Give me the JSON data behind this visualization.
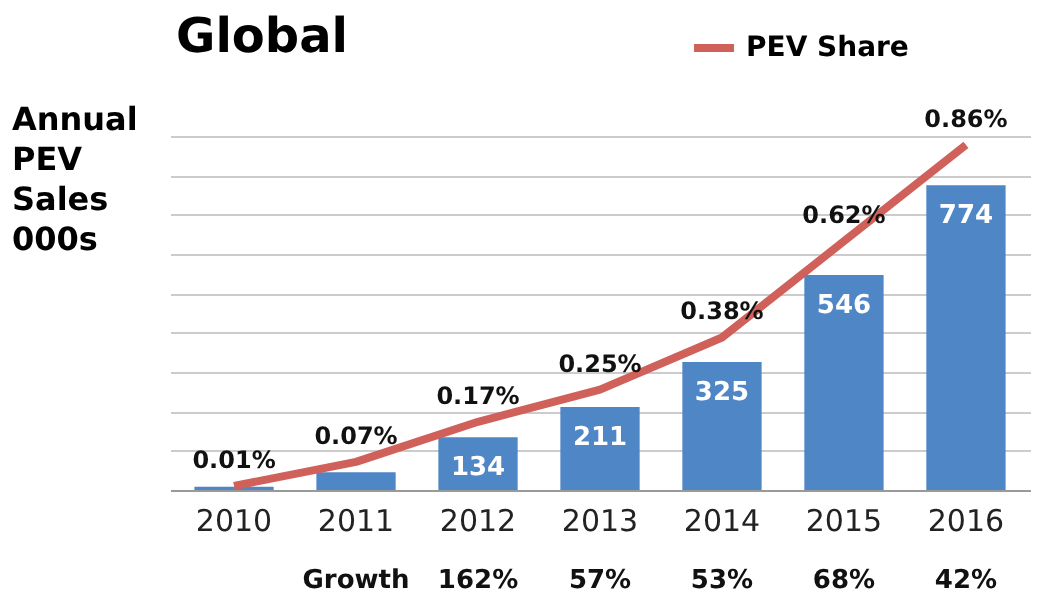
{
  "chart_data": {
    "type": "bar",
    "title": "Global",
    "ylabel": "Annual PEV Sales 000s",
    "categories": [
      "2010",
      "2011",
      "2012",
      "2013",
      "2014",
      "2015",
      "2016"
    ],
    "series": [
      {
        "color": "#4f86c6",
        "values": [
          8,
          45,
          134,
          211,
          325,
          546,
          774
        ],
        "value_labels": [
          null,
          null,
          "134",
          "211",
          "325",
          "546",
          "774"
        ]
      },
      {
        "type": "line",
        "name": "PEV Share",
        "color": "#d0605a",
        "axis": "y2",
        "values": [
          0.01,
          0.07,
          0.17,
          0.25,
          0.38,
          0.62,
          0.86
        ],
        "value_labels": [
          "0.01%",
          "0.07%",
          "0.17%",
          "0.25%",
          "0.38%",
          "0.62%",
          "0.86%"
        ]
      }
    ],
    "annotations": [
      "Growth",
      "162%",
      "57%",
      "53%",
      "68%",
      "42%"
    ],
    "grid": "y",
    "legend": "top right"
  }
}
